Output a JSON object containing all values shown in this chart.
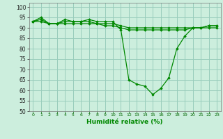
{
  "xlabel": "Humidité relative (%)",
  "background_color": "#cceedd",
  "grid_color": "#99ccbb",
  "line_color": "#008800",
  "marker_color": "#008800",
  "xlim": [
    -0.5,
    23.5
  ],
  "ylim": [
    50,
    102
  ],
  "yticks": [
    50,
    55,
    60,
    65,
    70,
    75,
    80,
    85,
    90,
    95,
    100
  ],
  "xticks": [
    0,
    1,
    2,
    3,
    4,
    5,
    6,
    7,
    8,
    9,
    10,
    11,
    12,
    13,
    14,
    15,
    16,
    17,
    18,
    19,
    20,
    21,
    22,
    23
  ],
  "series1": [
    93,
    95,
    92,
    92,
    94,
    93,
    93,
    94,
    93,
    93,
    93,
    89,
    65,
    63,
    62,
    58,
    61,
    66,
    80,
    86,
    90,
    90,
    91,
    91
  ],
  "series2": [
    93,
    94,
    92,
    92,
    93,
    93,
    93,
    93,
    92,
    92,
    92,
    91,
    90,
    90,
    90,
    90,
    90,
    90,
    90,
    90,
    90,
    90,
    91,
    91
  ],
  "series3": [
    93,
    93,
    92,
    92,
    92,
    92,
    92,
    92,
    92,
    91,
    91,
    90,
    89,
    89,
    89,
    89,
    89,
    89,
    89,
    89,
    90,
    90,
    90,
    90
  ]
}
